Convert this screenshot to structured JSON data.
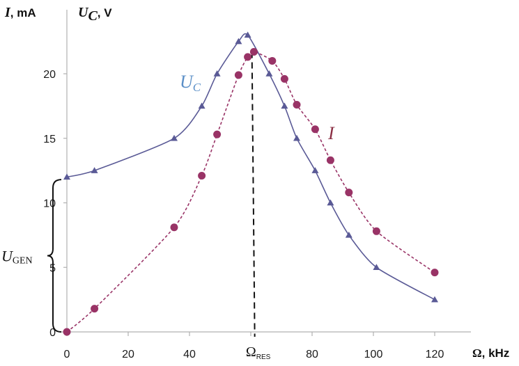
{
  "chart_data": {
    "type": "line",
    "x_axis": {
      "unit_symbol": "Ω",
      "unit_suffix": ", kHz",
      "ticks": [
        "0",
        "20",
        "40",
        "60",
        "80",
        "100",
        "120"
      ],
      "range": [
        0,
        120
      ]
    },
    "y_axis": {
      "label_i": "I",
      "label_i_unit": ", mA",
      "label_u": "U",
      "label_u_sub": "C",
      "label_u_unit": ", V",
      "ticks": [
        "0",
        "5",
        "10",
        "15",
        "20"
      ],
      "range": [
        0,
        23
      ]
    },
    "series": [
      {
        "name": "U",
        "name_sub": "C",
        "color": "#5a5a96",
        "marker": "triangle",
        "line_style": "solid",
        "points": [
          [
            0,
            12
          ],
          [
            9,
            12.5
          ],
          [
            35,
            15
          ],
          [
            44,
            17.5
          ],
          [
            49,
            20
          ],
          [
            56,
            22.5
          ],
          [
            59,
            23
          ],
          [
            66,
            20
          ],
          [
            71,
            17.5
          ],
          [
            75,
            15
          ],
          [
            81,
            12.5
          ],
          [
            86,
            10
          ],
          [
            92,
            7.5
          ],
          [
            101,
            5
          ],
          [
            120,
            2.5
          ]
        ]
      },
      {
        "name": "I",
        "color": "#993366",
        "marker": "circle",
        "line_style": "dashed",
        "points": [
          [
            0,
            0
          ],
          [
            9,
            1.8
          ],
          [
            35,
            8.1
          ],
          [
            44,
            12.1
          ],
          [
            49,
            15.3
          ],
          [
            56,
            19.9
          ],
          [
            59,
            21.3
          ],
          [
            61,
            21.7
          ],
          [
            67,
            21.0
          ],
          [
            71,
            19.6
          ],
          [
            75,
            17.6
          ],
          [
            81,
            15.7
          ],
          [
            86,
            13.3
          ],
          [
            92,
            10.8
          ],
          [
            101,
            7.8
          ],
          [
            120,
            4.6
          ]
        ]
      }
    ],
    "annotations": {
      "resonance": {
        "symbol": "Ω",
        "subscript": "RES",
        "x": 60.6,
        "y_top": 21.7
      },
      "u_gen": {
        "label": "U",
        "subscript": "GEN",
        "y_from": 0,
        "y_to": 11.8
      }
    }
  }
}
